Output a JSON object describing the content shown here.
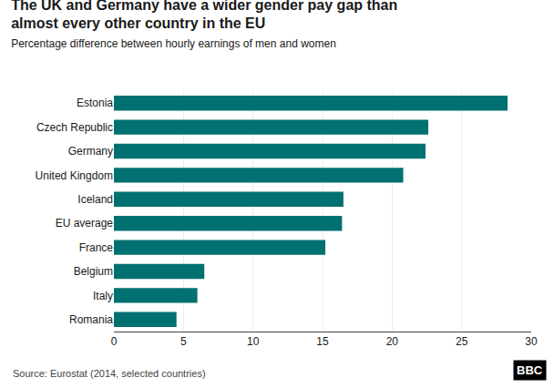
{
  "chart_data": {
    "type": "bar",
    "orientation": "horizontal",
    "title": "The UK and Germany have a wider gender pay gap than\nalmost every other country in the ⁠EU",
    "subtitle": "Percentage difference between hourly earnings of men and women",
    "annotations": [
      "Source: Eurostat (2014, selected countries)",
      "BBC"
    ],
    "categories": [
      "Estonia",
      "Czech Republic",
      "Germany",
      "United Kingdom",
      "Iceland",
      "EU average",
      "France",
      "Belgium",
      "Italy",
      "Romania"
    ],
    "values": [
      28.3,
      22.6,
      22.4,
      20.8,
      16.5,
      16.4,
      15.2,
      6.5,
      6.0,
      4.5
    ],
    "color": "#007070",
    "xlim": [
      0,
      30
    ],
    "xticks": [
      0,
      5,
      10,
      15,
      20,
      25,
      30
    ],
    "grid": true
  }
}
